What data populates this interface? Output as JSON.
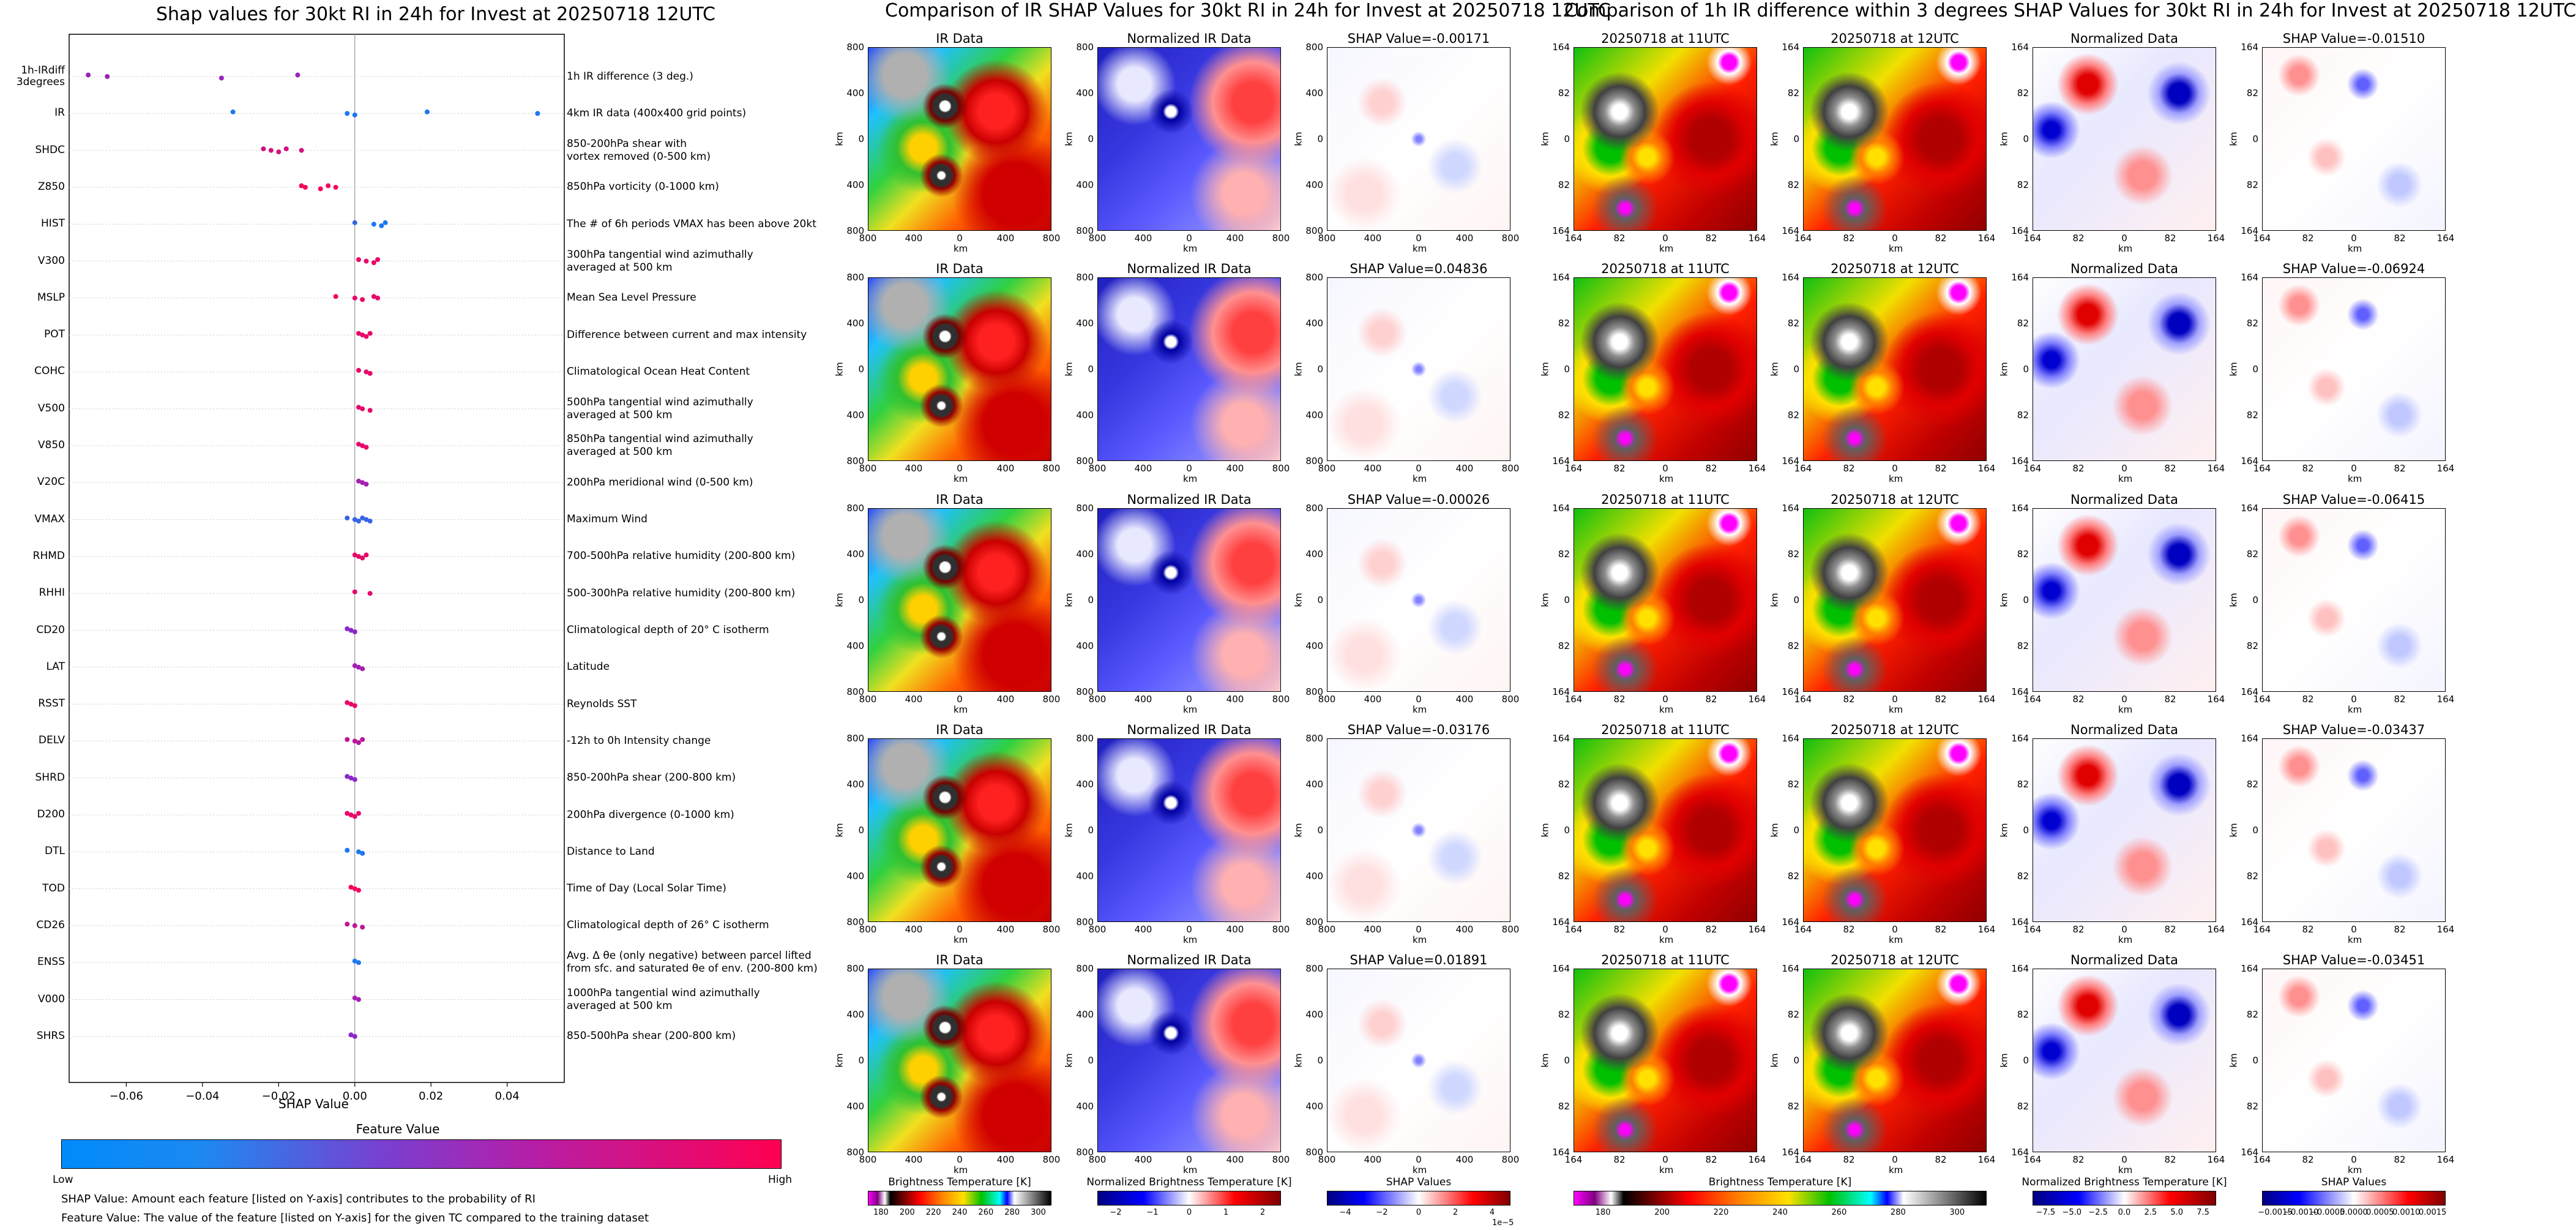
{
  "left": {
    "title": "Shap values for 30kt RI in 24h for Invest at 20250718 12UTC",
    "xlabel": "SHAP Value",
    "xticks": [
      "−0.06",
      "−0.04",
      "−0.02",
      "0.00",
      "0.02",
      "0.04"
    ],
    "colorbar_title": "Feature Value",
    "colorbar_low": "Low",
    "colorbar_high": "High",
    "note1": "SHAP Value: Amount each feature [listed on Y-axis] contributes to the probability of RI",
    "note2": "Feature Value: The value of the feature [listed on Y-axis] for the given TC compared to the training dataset",
    "low_color": "#008bfb",
    "high_color": "#ff0052"
  },
  "chart_data": {
    "type": "scatter",
    "title": "Shap values for 30kt RI in 24h for Invest at 20250718 12UTC",
    "xlabel": "SHAP Value",
    "xlim": [
      -0.075,
      0.055
    ],
    "grid": false,
    "features": [
      {
        "name": "1h-IRdiff 3degrees",
        "desc": "1h IR difference (3 deg.)",
        "points": [
          {
            "x": -0.07,
            "v": 0.55
          },
          {
            "x": -0.065,
            "v": 0.55
          },
          {
            "x": -0.035,
            "v": 0.55
          },
          {
            "x": -0.015,
            "v": 0.55
          }
        ]
      },
      {
        "name": "IR",
        "desc": "4km IR data (400x400 grid points)",
        "points": [
          {
            "x": -0.032,
            "v": 0.1
          },
          {
            "x": -0.002,
            "v": 0.1
          },
          {
            "x": 0.0,
            "v": 0.1
          },
          {
            "x": 0.019,
            "v": 0.1
          },
          {
            "x": 0.048,
            "v": 0.1
          }
        ]
      },
      {
        "name": "SHDC",
        "desc": "850-200hPa shear with\nvortex removed (0-500 km)",
        "points": [
          {
            "x": -0.024,
            "v": 0.8
          },
          {
            "x": -0.022,
            "v": 0.8
          },
          {
            "x": -0.02,
            "v": 0.8
          },
          {
            "x": -0.018,
            "v": 0.8
          },
          {
            "x": -0.014,
            "v": 0.8
          }
        ]
      },
      {
        "name": "Z850",
        "desc": "850hPa vorticity (0-1000 km)",
        "points": [
          {
            "x": -0.014,
            "v": 0.95
          },
          {
            "x": -0.013,
            "v": 0.95
          },
          {
            "x": -0.009,
            "v": 0.95
          },
          {
            "x": -0.007,
            "v": 0.95
          },
          {
            "x": -0.005,
            "v": 0.95
          }
        ]
      },
      {
        "name": "HIST",
        "desc": "The # of 6h periods VMAX has been above 20kt",
        "points": [
          {
            "x": 0.0,
            "v": 0.2
          },
          {
            "x": 0.005,
            "v": 0.1
          },
          {
            "x": 0.007,
            "v": 0.1
          },
          {
            "x": 0.008,
            "v": 0.1
          }
        ]
      },
      {
        "name": "V300",
        "desc": "300hPa tangential wind azimuthally\naveraged at 500 km",
        "points": [
          {
            "x": 0.001,
            "v": 0.9
          },
          {
            "x": 0.003,
            "v": 0.9
          },
          {
            "x": 0.005,
            "v": 0.9
          },
          {
            "x": 0.006,
            "v": 0.9
          }
        ]
      },
      {
        "name": "MSLP",
        "desc": "Mean Sea Level Pressure",
        "points": [
          {
            "x": -0.005,
            "v": 0.95
          },
          {
            "x": 0.0,
            "v": 0.9
          },
          {
            "x": 0.002,
            "v": 0.9
          },
          {
            "x": 0.005,
            "v": 0.9
          },
          {
            "x": 0.006,
            "v": 0.9
          }
        ]
      },
      {
        "name": "POT",
        "desc": "Difference between current and max intensity",
        "points": [
          {
            "x": 0.001,
            "v": 0.9
          },
          {
            "x": 0.002,
            "v": 0.9
          },
          {
            "x": 0.003,
            "v": 0.9
          },
          {
            "x": 0.004,
            "v": 0.9
          }
        ]
      },
      {
        "name": "COHC",
        "desc": "Climatological Ocean Heat Content",
        "points": [
          {
            "x": 0.001,
            "v": 0.9
          },
          {
            "x": 0.003,
            "v": 0.9
          },
          {
            "x": 0.004,
            "v": 0.9
          }
        ]
      },
      {
        "name": "V500",
        "desc": "500hPa tangential wind azimuthally\naveraged at 500 km",
        "points": [
          {
            "x": 0.001,
            "v": 0.9
          },
          {
            "x": 0.002,
            "v": 0.9
          },
          {
            "x": 0.004,
            "v": 0.9
          }
        ]
      },
      {
        "name": "V850",
        "desc": "850hPa tangential wind azimuthally\naveraged at 500 km",
        "points": [
          {
            "x": 0.001,
            "v": 0.9
          },
          {
            "x": 0.002,
            "v": 0.9
          },
          {
            "x": 0.003,
            "v": 0.9
          }
        ]
      },
      {
        "name": "V20C",
        "desc": "200hPa meridional wind (0-500 km)",
        "points": [
          {
            "x": 0.001,
            "v": 0.6
          },
          {
            "x": 0.002,
            "v": 0.6
          },
          {
            "x": 0.003,
            "v": 0.6
          }
        ]
      },
      {
        "name": "VMAX",
        "desc": "Maximum Wind",
        "points": [
          {
            "x": -0.002,
            "v": 0.2
          },
          {
            "x": 0.0,
            "v": 0.2
          },
          {
            "x": 0.001,
            "v": 0.2
          },
          {
            "x": 0.002,
            "v": 0.2
          },
          {
            "x": 0.003,
            "v": 0.2
          },
          {
            "x": 0.004,
            "v": 0.2
          }
        ]
      },
      {
        "name": "RHMD",
        "desc": "700-500hPa relative humidity (200-800 km)",
        "points": [
          {
            "x": 0.0,
            "v": 0.9
          },
          {
            "x": 0.001,
            "v": 0.9
          },
          {
            "x": 0.002,
            "v": 0.9
          },
          {
            "x": 0.003,
            "v": 0.9
          }
        ]
      },
      {
        "name": "RHHI",
        "desc": "500-300hPa relative humidity (200-800 km)",
        "points": [
          {
            "x": 0.0,
            "v": 0.9
          },
          {
            "x": 0.004,
            "v": 0.9
          }
        ]
      },
      {
        "name": "CD20",
        "desc": "Climatological depth of 20° C isotherm",
        "points": [
          {
            "x": -0.002,
            "v": 0.5
          },
          {
            "x": -0.001,
            "v": 0.5
          },
          {
            "x": 0.0,
            "v": 0.5
          }
        ]
      },
      {
        "name": "LAT",
        "desc": "Latitude",
        "points": [
          {
            "x": 0.0,
            "v": 0.6
          },
          {
            "x": 0.001,
            "v": 0.6
          },
          {
            "x": 0.002,
            "v": 0.6
          }
        ]
      },
      {
        "name": "RSST",
        "desc": "Reynolds SST",
        "points": [
          {
            "x": -0.002,
            "v": 0.9
          },
          {
            "x": -0.001,
            "v": 0.9
          },
          {
            "x": 0.0,
            "v": 0.9
          }
        ]
      },
      {
        "name": "DELV",
        "desc": "-12h to 0h Intensity change",
        "points": [
          {
            "x": -0.002,
            "v": 0.7
          },
          {
            "x": 0.0,
            "v": 0.7
          },
          {
            "x": 0.001,
            "v": 0.7
          },
          {
            "x": 0.002,
            "v": 0.7
          }
        ]
      },
      {
        "name": "SHRD",
        "desc": "850-200hPa shear (200-800 km)",
        "points": [
          {
            "x": -0.002,
            "v": 0.5
          },
          {
            "x": -0.001,
            "v": 0.5
          },
          {
            "x": 0.0,
            "v": 0.5
          }
        ]
      },
      {
        "name": "D200",
        "desc": "200hPa divergence (0-1000 km)",
        "points": [
          {
            "x": -0.002,
            "v": 0.9
          },
          {
            "x": -0.001,
            "v": 0.9
          },
          {
            "x": 0.0,
            "v": 0.9
          },
          {
            "x": 0.001,
            "v": 0.9
          }
        ]
      },
      {
        "name": "DTL",
        "desc": "Distance to Land",
        "points": [
          {
            "x": -0.002,
            "v": 0.1
          },
          {
            "x": 0.001,
            "v": 0.1
          },
          {
            "x": 0.002,
            "v": 0.1
          }
        ]
      },
      {
        "name": "TOD",
        "desc": "Time of Day (Local Solar Time)",
        "points": [
          {
            "x": -0.001,
            "v": 0.95
          },
          {
            "x": 0.0,
            "v": 0.95
          },
          {
            "x": 0.001,
            "v": 0.95
          }
        ]
      },
      {
        "name": "CD26",
        "desc": "Climatological depth of 26° C isotherm",
        "points": [
          {
            "x": -0.002,
            "v": 0.7
          },
          {
            "x": 0.0,
            "v": 0.7
          },
          {
            "x": 0.002,
            "v": 0.7
          }
        ]
      },
      {
        "name": "ENSS",
        "desc": "Avg. Δ θe (only negative) between parcel lifted\nfrom sfc. and saturated θe of env. (200-800 km)",
        "points": [
          {
            "x": 0.0,
            "v": 0.1
          },
          {
            "x": 0.001,
            "v": 0.1
          }
        ]
      },
      {
        "name": "V000",
        "desc": "1000hPa tangential wind azimuthally\naveraged at 500 km",
        "points": [
          {
            "x": 0.0,
            "v": 0.6
          },
          {
            "x": 0.001,
            "v": 0.6
          }
        ]
      },
      {
        "name": "SHRS",
        "desc": "850-500hPa shear (200-800 km)",
        "points": [
          {
            "x": -0.001,
            "v": 0.5
          },
          {
            "x": 0.0,
            "v": 0.5
          }
        ]
      }
    ]
  },
  "middle": {
    "title": "Comparison of IR SHAP Values for 30kt RI in 24h for Invest at 20250718 12UTC",
    "col_titles": [
      "IR Data",
      "Normalized IR Data"
    ],
    "shap_titles": [
      "SHAP Value=-0.00171",
      "SHAP Value=0.04836",
      "SHAP Value=-0.00026",
      "SHAP Value=-0.03176",
      "SHAP Value=0.01891"
    ],
    "yticks": [
      "800",
      "400",
      "0",
      "400",
      "800"
    ],
    "xticks": [
      "800",
      "400",
      "0",
      "400",
      "800"
    ],
    "axis_label": "km",
    "colorbars": [
      {
        "title": "Brightness Temperature [K]",
        "ticks": [
          "180",
          "200",
          "220",
          "240",
          "260",
          "280",
          "300"
        ]
      },
      {
        "title": "Normalized Brightness Temperature [K]",
        "ticks": [
          "−2",
          "−1",
          "0",
          "1",
          "2"
        ]
      },
      {
        "title": "SHAP Values",
        "ticks": [
          "−4",
          "−2",
          "0",
          "2",
          "4"
        ],
        "offset": "1e−5"
      }
    ]
  },
  "right": {
    "title": "Comparison of 1h IR difference within 3 degrees SHAP Values for 30kt RI in 24h for Invest at 20250718 12UTC",
    "col_titles": [
      "20250718 at 11UTC",
      "20250718 at 12UTC",
      "Normalized Data"
    ],
    "shap_titles": [
      "SHAP Value=-0.01510",
      "SHAP Value=-0.06924",
      "SHAP Value=-0.06415",
      "SHAP Value=-0.03437",
      "SHAP Value=-0.03451"
    ],
    "yticks": [
      "164",
      "82",
      "0",
      "82",
      "164"
    ],
    "xticks": [
      "164",
      "82",
      "0",
      "82",
      "164"
    ],
    "axis_label": "km",
    "colorbars": [
      {
        "title": "Brightness Temperature [K]",
        "ticks": [
          "180",
          "200",
          "220",
          "240",
          "260",
          "280",
          "300"
        ]
      },
      {
        "title": "Normalized Brightness Temperature [K]",
        "ticks": [
          "−7.5",
          "−5.0",
          "−2.5",
          "0.0",
          "2.5",
          "5.0",
          "7.5"
        ]
      },
      {
        "title": "SHAP Values",
        "ticks": [
          "−0.0015",
          "−0.0010",
          "−0.0005",
          "0.0000",
          "0.0005",
          "0.0010",
          "0.0015"
        ]
      }
    ]
  }
}
